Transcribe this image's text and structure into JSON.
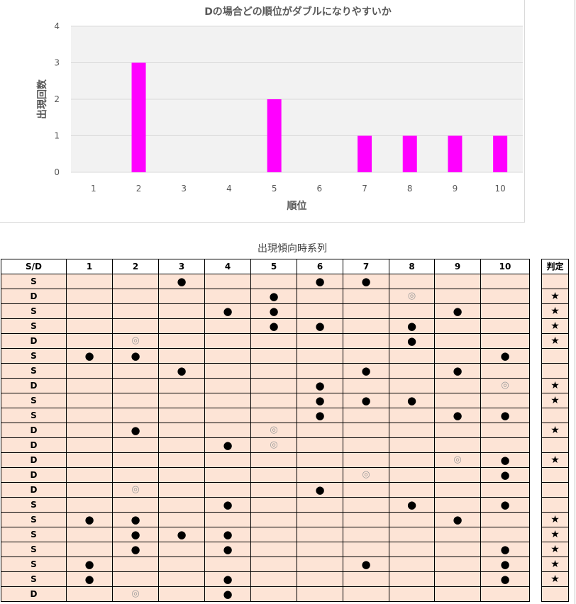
{
  "chart_data": {
    "type": "bar",
    "title": "Dの場合どの順位がダブルになりやすいか",
    "xlabel": "順位",
    "ylabel": "出現回数",
    "categories": [
      "1",
      "2",
      "3",
      "4",
      "5",
      "6",
      "7",
      "8",
      "9",
      "10"
    ],
    "values": [
      0,
      3,
      0,
      0,
      2,
      0,
      1,
      1,
      1,
      1
    ],
    "ylim": [
      0,
      4
    ],
    "yticks": [
      "0",
      "1",
      "2",
      "3",
      "4"
    ],
    "bar_color": "#ff00ff",
    "grid": true
  },
  "table": {
    "caption": "出現傾向時系列",
    "corner_header": "S/D",
    "columns": [
      "1",
      "2",
      "3",
      "4",
      "5",
      "6",
      "7",
      "8",
      "9",
      "10"
    ],
    "judge_header": "判定",
    "symbols": {
      "dot": "●",
      "ring": "◎",
      "star": "★"
    },
    "rows": [
      {
        "type": "S",
        "marks": [
          "",
          "",
          "●",
          "",
          "",
          "●",
          "●",
          "",
          "",
          ""
        ],
        "judge": ""
      },
      {
        "type": "D",
        "marks": [
          "",
          "",
          "",
          "",
          "●",
          "",
          "",
          "◎",
          "",
          ""
        ],
        "judge": "★"
      },
      {
        "type": "S",
        "marks": [
          "",
          "",
          "",
          "●",
          "●",
          "",
          "",
          "",
          "●",
          ""
        ],
        "judge": "★"
      },
      {
        "type": "S",
        "marks": [
          "",
          "",
          "",
          "",
          "●",
          "●",
          "",
          "●",
          "",
          ""
        ],
        "judge": "★"
      },
      {
        "type": "D",
        "marks": [
          "",
          "◎",
          "",
          "",
          "",
          "",
          "",
          "●",
          "",
          ""
        ],
        "judge": "★"
      },
      {
        "type": "S",
        "marks": [
          "●",
          "●",
          "",
          "",
          "",
          "",
          "",
          "",
          "",
          "●"
        ],
        "judge": ""
      },
      {
        "type": "S",
        "marks": [
          "",
          "",
          "●",
          "",
          "",
          "",
          "●",
          "",
          "●",
          ""
        ],
        "judge": ""
      },
      {
        "type": "D",
        "marks": [
          "",
          "",
          "",
          "",
          "",
          "●",
          "",
          "",
          "",
          "◎"
        ],
        "judge": "★"
      },
      {
        "type": "S",
        "marks": [
          "",
          "",
          "",
          "",
          "",
          "●",
          "●",
          "●",
          "",
          ""
        ],
        "judge": "★"
      },
      {
        "type": "S",
        "marks": [
          "",
          "",
          "",
          "",
          "",
          "●",
          "",
          "",
          "●",
          "●"
        ],
        "judge": ""
      },
      {
        "type": "D",
        "marks": [
          "",
          "●",
          "",
          "",
          "◎",
          "",
          "",
          "",
          "",
          ""
        ],
        "judge": "★"
      },
      {
        "type": "D",
        "marks": [
          "",
          "",
          "",
          "●",
          "◎",
          "",
          "",
          "",
          "",
          ""
        ],
        "judge": ""
      },
      {
        "type": "D",
        "marks": [
          "",
          "",
          "",
          "",
          "",
          "",
          "",
          "",
          "◎",
          "●"
        ],
        "judge": "★"
      },
      {
        "type": "D",
        "marks": [
          "",
          "",
          "",
          "",
          "",
          "",
          "◎",
          "",
          "",
          "●"
        ],
        "judge": ""
      },
      {
        "type": "D",
        "marks": [
          "",
          "◎",
          "",
          "",
          "",
          "●",
          "",
          "",
          "",
          ""
        ],
        "judge": ""
      },
      {
        "type": "S",
        "marks": [
          "",
          "",
          "",
          "●",
          "",
          "",
          "",
          "●",
          "",
          "●"
        ],
        "judge": ""
      },
      {
        "type": "S",
        "marks": [
          "●",
          "●",
          "",
          "",
          "",
          "",
          "",
          "",
          "●",
          ""
        ],
        "judge": "★"
      },
      {
        "type": "S",
        "marks": [
          "",
          "●",
          "●",
          "●",
          "",
          "",
          "",
          "",
          "",
          ""
        ],
        "judge": "★"
      },
      {
        "type": "S",
        "marks": [
          "",
          "●",
          "",
          "●",
          "",
          "",
          "",
          "",
          "",
          "●"
        ],
        "judge": "★"
      },
      {
        "type": "S",
        "marks": [
          "●",
          "",
          "",
          "",
          "",
          "",
          "●",
          "",
          "",
          "●"
        ],
        "judge": "★"
      },
      {
        "type": "S",
        "marks": [
          "●",
          "",
          "",
          "●",
          "",
          "",
          "",
          "",
          "",
          "●"
        ],
        "judge": "★"
      },
      {
        "type": "D",
        "marks": [
          "",
          "◎",
          "",
          "●",
          "",
          "",
          "",
          "",
          "",
          ""
        ],
        "judge": ""
      }
    ]
  }
}
